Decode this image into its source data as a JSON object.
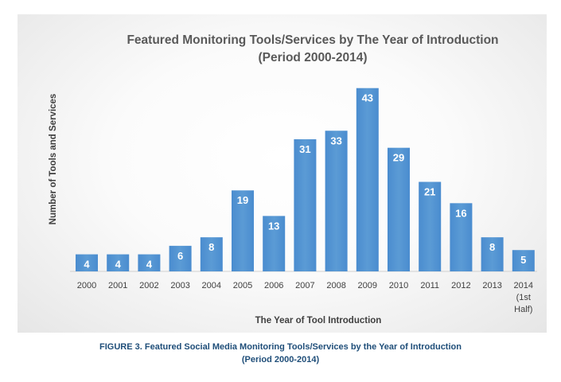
{
  "chart_data": {
    "type": "bar",
    "title_line1": "Featured Monitoring Tools/Services by The Year of Introduction",
    "title_line2": "(Period 2000-2014)",
    "xlabel": "The Year of Tool Introduction",
    "ylabel": "Number of Tools and Services",
    "categories": [
      "2000",
      "2001",
      "2002",
      "2003",
      "2004",
      "2005",
      "2006",
      "2007",
      "2008",
      "2009",
      "2010",
      "2011",
      "2012",
      "2013",
      "2014 (1st Half)"
    ],
    "category_lines": [
      [
        "2000"
      ],
      [
        "2001"
      ],
      [
        "2002"
      ],
      [
        "2003"
      ],
      [
        "2004"
      ],
      [
        "2005"
      ],
      [
        "2006"
      ],
      [
        "2007"
      ],
      [
        "2008"
      ],
      [
        "2009"
      ],
      [
        "2010"
      ],
      [
        "2011"
      ],
      [
        "2012"
      ],
      [
        "2013"
      ],
      [
        "2014",
        "(1st",
        "Half)"
      ]
    ],
    "values": [
      4,
      4,
      4,
      6,
      8,
      19,
      13,
      31,
      33,
      43,
      29,
      21,
      16,
      8,
      5
    ],
    "ylim": [
      0,
      45
    ],
    "bar_color": "#5b9bd5",
    "grid": false
  },
  "caption": {
    "line1": "FIGURE 3. Featured Social Media Monitoring Tools/Services by the Year of Introduction",
    "line2": "(Period 2000-2014)"
  }
}
